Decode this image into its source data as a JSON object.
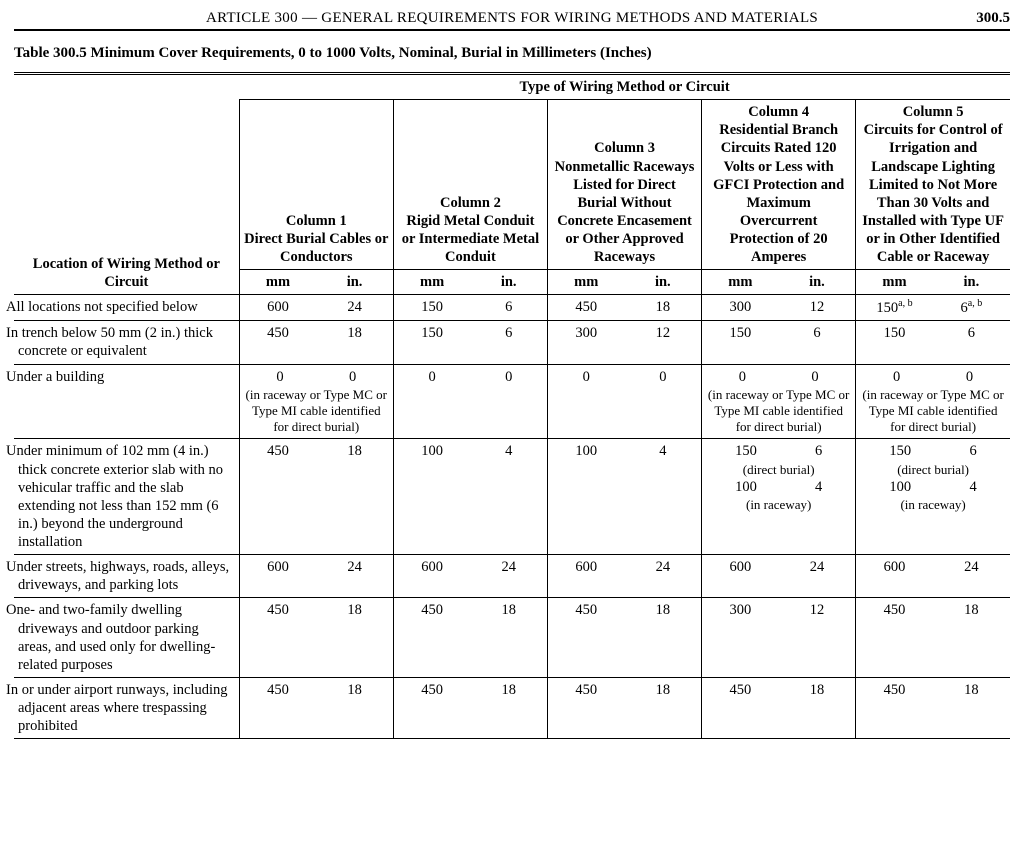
{
  "header": {
    "article": "ARTICLE 300 — GENERAL REQUIREMENTS FOR WIRING METHODS AND MATERIALS",
    "page_number": "300.5"
  },
  "caption": "Table 300.5  Minimum Cover Requirements, 0 to 1000 Volts, Nominal, Burial in Millimeters (Inches)",
  "table": {
    "spanner": "Type of Wiring Method or Circuit",
    "stub_heading": "Location of Wiring Method or Circuit",
    "unit_mm": "mm",
    "unit_in": "in.",
    "columns": [
      {
        "id": "c1",
        "label": "Column 1\nDirect Burial Cables or Conductors"
      },
      {
        "id": "c2",
        "label": "Column 2\nRigid Metal Conduit or Intermediate Metal Conduit"
      },
      {
        "id": "c3",
        "label": "Column 3\nNonmetallic Raceways Listed for Direct Burial Without Concrete Encasement or Other Approved Raceways"
      },
      {
        "id": "c4",
        "label": "Column 4\nResidential Branch Circuits Rated 120 Volts or Less with GFCI Protection and Maximum Overcurrent Protection of 20 Amperes"
      },
      {
        "id": "c5",
        "label": "Column 5\nCircuits for Control of Irrigation and Landscape Lighting Limited to Not More Than 30 Volts and Installed with Type UF or in Other Identified Cable or Raceway"
      }
    ],
    "rows": [
      {
        "stub": "All locations not specified below",
        "cells": [
          {
            "mm": "600",
            "in": "24"
          },
          {
            "mm": "150",
            "in": "6"
          },
          {
            "mm": "450",
            "in": "18"
          },
          {
            "mm": "300",
            "in": "12"
          },
          {
            "mm": "150",
            "in": "6",
            "mm_sup": "a, b",
            "in_sup": "a, b"
          }
        ]
      },
      {
        "stub": "In trench below 50 mm (2 in.) thick concrete or equivalent",
        "cells": [
          {
            "mm": "450",
            "in": "18"
          },
          {
            "mm": "150",
            "in": "6"
          },
          {
            "mm": "300",
            "in": "12"
          },
          {
            "mm": "150",
            "in": "6"
          },
          {
            "mm": "150",
            "in": "6"
          }
        ]
      },
      {
        "stub": "Under a building",
        "cells": [
          {
            "mm": "0",
            "in": "0",
            "note": "(in raceway or Type MC or Type MI cable identified for direct burial)"
          },
          {
            "mm": "0",
            "in": "0"
          },
          {
            "mm": "0",
            "in": "0"
          },
          {
            "mm": "0",
            "in": "0",
            "note": "(in raceway or Type MC or Type MI cable identified for direct burial)"
          },
          {
            "mm": "0",
            "in": "0",
            "note": "(in raceway or Type MC or Type MI cable identified for direct burial)"
          }
        ]
      },
      {
        "stub": "Under minimum of 102 mm (4 in.) thick concrete exterior slab with no vehicular traffic and the slab extending not less than 152 mm (6 in.) beyond the underground installation",
        "cells": [
          {
            "mm": "450",
            "in": "18"
          },
          {
            "mm": "100",
            "in": "4"
          },
          {
            "mm": "100",
            "in": "4"
          },
          {
            "mm": "150",
            "in": "6",
            "note2": "(direct burial)",
            "mm2": "100",
            "in2": "4",
            "note3": "(in raceway)"
          },
          {
            "mm": "150",
            "in": "6",
            "note2": "(direct burial)",
            "mm2": "100",
            "in2": "4",
            "note3": "(in raceway)"
          }
        ]
      },
      {
        "stub": "Under streets, highways, roads, alleys, driveways, and parking lots",
        "cells": [
          {
            "mm": "600",
            "in": "24"
          },
          {
            "mm": "600",
            "in": "24"
          },
          {
            "mm": "600",
            "in": "24"
          },
          {
            "mm": "600",
            "in": "24"
          },
          {
            "mm": "600",
            "in": "24"
          }
        ]
      },
      {
        "stub": "One- and two-family dwelling driveways and outdoor parking areas, and used only for dwelling-related purposes",
        "cells": [
          {
            "mm": "450",
            "in": "18"
          },
          {
            "mm": "450",
            "in": "18"
          },
          {
            "mm": "450",
            "in": "18"
          },
          {
            "mm": "300",
            "in": "12"
          },
          {
            "mm": "450",
            "in": "18"
          }
        ]
      },
      {
        "stub": "In or under airport runways, including adjacent areas where trespassing prohibited",
        "cells": [
          {
            "mm": "450",
            "in": "18"
          },
          {
            "mm": "450",
            "in": "18"
          },
          {
            "mm": "450",
            "in": "18"
          },
          {
            "mm": "450",
            "in": "18"
          },
          {
            "mm": "450",
            "in": "18"
          }
        ]
      }
    ]
  }
}
